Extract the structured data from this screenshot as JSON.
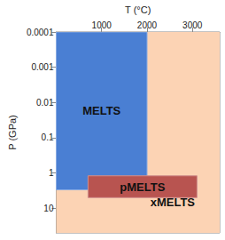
{
  "chart_data": {
    "type": "region",
    "xlabel": "T (°C)",
    "ylabel": "P (GPa)",
    "xlim": [
      0,
      3600
    ],
    "xticks": [
      1000,
      2000,
      3000
    ],
    "ylim": [
      0.0001,
      50
    ],
    "yticks": [
      0.0001,
      0.001,
      0.01,
      0.1,
      1,
      10
    ],
    "log": "y",
    "grid": false,
    "regions": [
      {
        "name": "xMELTS",
        "color": "#fcd3b4",
        "x": [
          0,
          3600
        ],
        "y": [
          0.0001,
          50
        ]
      },
      {
        "name": "MELTS",
        "color": "#4a7fd3",
        "x": [
          0,
          2000
        ],
        "y": [
          0.0001,
          3
        ]
      },
      {
        "name": "pMELTS",
        "color": "#b85450",
        "x": [
          700,
          3100
        ],
        "y": [
          1.2,
          5
        ]
      }
    ]
  }
}
